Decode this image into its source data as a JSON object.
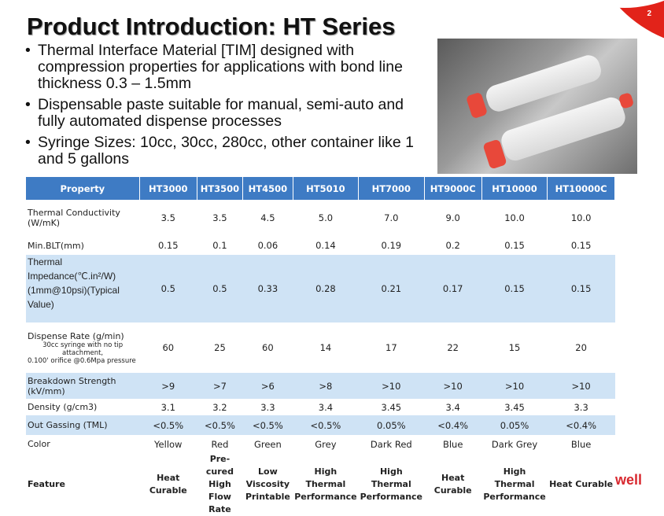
{
  "slide": {
    "number": "2",
    "title": "Product Introduction: HT Series",
    "logo_text": "well",
    "brand_color": "#e2231a",
    "header_color": "#3e7bc4",
    "highlight_row_color": "#cfe3f5"
  },
  "bullets": [
    "Thermal Interface Material [TIM] designed with compression properties for applications with bond line thickness 0.3 – 1.5mm",
    "Dispensable paste suitable for manual, semi-auto and fully automated dispense processes",
    "Syringe Sizes: 10cc, 30cc, 280cc, other container like 1 and 5 gallons"
  ],
  "table": {
    "headers": [
      "Property",
      "HT3000",
      "HT3500",
      "HT4500",
      "HT5010",
      "HT7000",
      "HT9000C",
      "HT10000",
      "HT10000C"
    ],
    "rows": [
      {
        "property": "Thermal Conductivity (W/mK)",
        "values": [
          "3.5",
          "3.5",
          "4.5",
          "5.0",
          "7.0",
          "9.0",
          "10.0",
          "10.0"
        ]
      },
      {
        "property": "Min.BLT(mm)",
        "values": [
          "0.15",
          "0.1",
          "0.06",
          "0.14",
          "0.19",
          "0.2",
          "0.15",
          "0.15"
        ]
      },
      {
        "property": "Thermal Impedance(℃.in²/W) (1mm@10psi)(Typical Value)",
        "values": [
          "0.5",
          "0.5",
          "0.33",
          "0.28",
          "0.21",
          "0.17",
          "0.15",
          "0.15"
        ]
      },
      {
        "property": "Dispense Rate (g/min)",
        "note": "30cc syringe with no tip attachment,",
        "note2": "0.100' orifice @0.6Mpa pressure",
        "values": [
          "60",
          "25",
          "60",
          "14",
          "17",
          "22",
          "15",
          "20"
        ]
      },
      {
        "property": "Breakdown Strength (kV/mm)",
        "values": [
          ">9",
          ">7",
          ">6",
          ">8",
          ">10",
          ">10",
          ">10",
          ">10"
        ]
      },
      {
        "property": "Density (g/cm3)",
        "values": [
          "3.1",
          "3.2",
          "3.3",
          "3.4",
          "3.45",
          "3.4",
          "3.45",
          "3.3"
        ]
      },
      {
        "property": "Out Gassing (TML)",
        "values": [
          "<0.5%",
          "<0.5%",
          "<0.5%",
          "<0.5%",
          "0.05%",
          "<0.4%",
          "0.05%",
          "<0.4%"
        ]
      },
      {
        "property": "Color",
        "values": [
          "Yellow",
          "Red",
          "Green",
          "Grey",
          "Dark Red",
          "Blue",
          "Dark Grey",
          "Blue"
        ]
      },
      {
        "property": "Feature",
        "values": [
          "Heat Curable",
          "Pre-cured High Flow Rate",
          "Low Viscosity Printable",
          "High Thermal Performance",
          "High Thermal Performance",
          "Heat Curable",
          "High Thermal Performance",
          "Heat Curable"
        ]
      }
    ]
  }
}
